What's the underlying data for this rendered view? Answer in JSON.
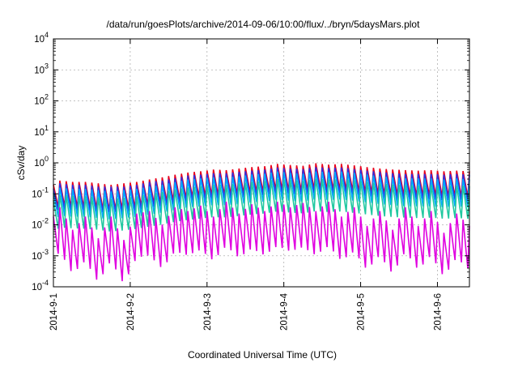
{
  "chart_data": {
    "type": "line",
    "title": "/data/run/goesPlots/archive/2014-09-06/10:00/flux/../bryn/5daysMars.plot",
    "xlabel": "Coordinated Universal Time (UTC)",
    "ylabel": "cSv/day",
    "log_y": true,
    "xlim": [
      "2014-09-01 00:00",
      "2014-09-06 10:00"
    ],
    "ylim": [
      0.0001,
      10000
    ],
    "grid": true,
    "x_ticks": [
      "2014-09-01",
      "2014-09-02",
      "2014-09-03",
      "2014-09-04",
      "2014-09-05",
      "2014-09-06"
    ],
    "x_tick_labels": [
      "2014-9-1",
      "2014-9-2",
      "2014-9-3",
      "2014-9-4",
      "2014-9-5",
      "2014-9-6"
    ],
    "y_ticks": [
      {
        "base": "10",
        "exp": "-4"
      },
      {
        "base": "10",
        "exp": "-3"
      },
      {
        "base": "10",
        "exp": "-2"
      },
      {
        "base": "10",
        "exp": "-1"
      },
      {
        "base": "10",
        "exp": "0"
      },
      {
        "base": "10",
        "exp": "1"
      },
      {
        "base": "10",
        "exp": "2"
      },
      {
        "base": "10",
        "exp": "3"
      },
      {
        "base": "10",
        "exp": "4"
      }
    ],
    "series": [
      {
        "color": "#e8001c",
        "x": [
          "2014-09-01 00:00",
          "2014-09-01 02:00",
          "2014-09-01 06:00",
          "2014-09-01 10:00",
          "2014-09-01 14:00",
          "2014-09-01 18:00",
          "2014-09-01 22:00",
          "2014-09-02 02:00",
          "2014-09-02 06:00",
          "2014-09-02 10:00",
          "2014-09-02 14:00",
          "2014-09-02 18:00",
          "2014-09-02 22:00",
          "2014-09-03 02:00",
          "2014-09-03 06:00",
          "2014-09-03 10:00",
          "2014-09-03 14:00",
          "2014-09-03 18:00",
          "2014-09-03 22:00",
          "2014-09-04 02:00",
          "2014-09-04 06:00",
          "2014-09-04 10:00",
          "2014-09-04 14:00",
          "2014-09-04 18:00",
          "2014-09-04 22:00",
          "2014-09-05 02:00",
          "2014-09-05 06:00",
          "2014-09-05 10:00",
          "2014-09-05 14:00",
          "2014-09-05 18:00",
          "2014-09-05 22:00",
          "2014-09-06 02:00",
          "2014-09-06 06:00",
          "2014-09-06 10:00"
        ],
        "y": [
          0.08,
          0.11,
          0.1,
          0.1,
          0.09,
          0.08,
          0.09,
          0.1,
          0.12,
          0.14,
          0.17,
          0.2,
          0.22,
          0.25,
          0.24,
          0.27,
          0.3,
          0.32,
          0.38,
          0.35,
          0.33,
          0.4,
          0.36,
          0.38,
          0.34,
          0.3,
          0.27,
          0.25,
          0.24,
          0.23,
          0.24,
          0.22,
          0.23,
          0.22
        ]
      },
      {
        "color": "#3030e0",
        "x": [
          "2014-09-01 00:00",
          "2014-09-01 02:00",
          "2014-09-01 06:00",
          "2014-09-01 10:00",
          "2014-09-01 14:00",
          "2014-09-01 18:00",
          "2014-09-01 22:00",
          "2014-09-02 02:00",
          "2014-09-02 06:00",
          "2014-09-02 10:00",
          "2014-09-02 14:00",
          "2014-09-02 18:00",
          "2014-09-02 22:00",
          "2014-09-03 02:00",
          "2014-09-03 06:00",
          "2014-09-03 10:00",
          "2014-09-03 14:00",
          "2014-09-03 18:00",
          "2014-09-03 22:00",
          "2014-09-04 02:00",
          "2014-09-04 06:00",
          "2014-09-04 10:00",
          "2014-09-04 14:00",
          "2014-09-04 18:00",
          "2014-09-04 22:00",
          "2014-09-05 02:00",
          "2014-09-05 06:00",
          "2014-09-05 10:00",
          "2014-09-05 14:00",
          "2014-09-05 18:00",
          "2014-09-05 22:00",
          "2014-09-06 02:00",
          "2014-09-06 06:00",
          "2014-09-06 10:00"
        ],
        "y": [
          0.06,
          0.09,
          0.08,
          0.08,
          0.07,
          0.07,
          0.07,
          0.08,
          0.1,
          0.11,
          0.13,
          0.16,
          0.17,
          0.19,
          0.19,
          0.21,
          0.23,
          0.25,
          0.29,
          0.27,
          0.26,
          0.3,
          0.28,
          0.29,
          0.26,
          0.23,
          0.21,
          0.19,
          0.18,
          0.18,
          0.18,
          0.17,
          0.18,
          0.17
        ]
      },
      {
        "color": "#00a8ff",
        "x": [
          "2014-09-01 00:00",
          "2014-09-01 02:00",
          "2014-09-01 06:00",
          "2014-09-01 10:00",
          "2014-09-01 14:00",
          "2014-09-01 18:00",
          "2014-09-01 22:00",
          "2014-09-02 02:00",
          "2014-09-02 06:00",
          "2014-09-02 10:00",
          "2014-09-02 14:00",
          "2014-09-02 18:00",
          "2014-09-02 22:00",
          "2014-09-03 02:00",
          "2014-09-03 06:00",
          "2014-09-03 10:00",
          "2014-09-03 14:00",
          "2014-09-03 18:00",
          "2014-09-03 22:00",
          "2014-09-04 02:00",
          "2014-09-04 06:00",
          "2014-09-04 10:00",
          "2014-09-04 14:00",
          "2014-09-04 18:00",
          "2014-09-04 22:00",
          "2014-09-05 02:00",
          "2014-09-05 06:00",
          "2014-09-05 10:00",
          "2014-09-05 14:00",
          "2014-09-05 18:00",
          "2014-09-05 22:00",
          "2014-09-06 02:00",
          "2014-09-06 06:00",
          "2014-09-06 10:00"
        ],
        "y": [
          0.04,
          0.06,
          0.055,
          0.055,
          0.05,
          0.045,
          0.05,
          0.055,
          0.065,
          0.075,
          0.09,
          0.11,
          0.12,
          0.13,
          0.13,
          0.14,
          0.16,
          0.17,
          0.2,
          0.18,
          0.17,
          0.2,
          0.19,
          0.2,
          0.18,
          0.16,
          0.14,
          0.13,
          0.12,
          0.12,
          0.12,
          0.11,
          0.12,
          0.11
        ]
      },
      {
        "color": "#20c8a0",
        "x": [
          "2014-09-01 00:00",
          "2014-09-01 02:00",
          "2014-09-01 06:00",
          "2014-09-01 10:00",
          "2014-09-01 14:00",
          "2014-09-01 18:00",
          "2014-09-01 22:00",
          "2014-09-02 02:00",
          "2014-09-02 06:00",
          "2014-09-02 10:00",
          "2014-09-02 14:00",
          "2014-09-02 18:00",
          "2014-09-02 22:00",
          "2014-09-03 02:00",
          "2014-09-03 06:00",
          "2014-09-03 10:00",
          "2014-09-03 14:00",
          "2014-09-03 18:00",
          "2014-09-03 22:00",
          "2014-09-04 02:00",
          "2014-09-04 06:00",
          "2014-09-04 10:00",
          "2014-09-04 14:00",
          "2014-09-04 18:00",
          "2014-09-04 22:00",
          "2014-09-05 02:00",
          "2014-09-05 06:00",
          "2014-09-05 10:00",
          "2014-09-05 14:00",
          "2014-09-05 18:00",
          "2014-09-05 22:00",
          "2014-09-06 02:00",
          "2014-09-06 06:00",
          "2014-09-06 10:00"
        ],
        "y": [
          0.02,
          0.03,
          0.028,
          0.027,
          0.025,
          0.022,
          0.024,
          0.027,
          0.032,
          0.037,
          0.045,
          0.052,
          0.058,
          0.064,
          0.063,
          0.07,
          0.078,
          0.084,
          0.098,
          0.09,
          0.085,
          0.1,
          0.094,
          0.098,
          0.088,
          0.078,
          0.07,
          0.065,
          0.062,
          0.06,
          0.062,
          0.057,
          0.06,
          0.057
        ]
      },
      {
        "color": "#e000e0",
        "x": [
          "2014-09-01 00:00",
          "2014-09-01 02:00",
          "2014-09-01 06:00",
          "2014-09-01 10:00",
          "2014-09-01 14:00",
          "2014-09-01 18:00",
          "2014-09-01 22:00",
          "2014-09-02 02:00",
          "2014-09-02 06:00",
          "2014-09-02 10:00",
          "2014-09-02 14:00",
          "2014-09-02 18:00",
          "2014-09-02 22:00",
          "2014-09-03 02:00",
          "2014-09-03 06:00",
          "2014-09-03 10:00",
          "2014-09-03 14:00",
          "2014-09-03 18:00",
          "2014-09-03 22:00",
          "2014-09-04 02:00",
          "2014-09-04 06:00",
          "2014-09-04 10:00",
          "2014-09-04 14:00",
          "2014-09-04 18:00",
          "2014-09-04 22:00",
          "2014-09-05 02:00",
          "2014-09-05 06:00",
          "2014-09-05 10:00",
          "2014-09-05 14:00",
          "2014-09-05 18:00",
          "2014-09-05 22:00",
          "2014-09-06 02:00",
          "2014-09-06 06:00",
          "2014-09-06 10:00"
        ],
        "y": [
          0.004,
          0.008,
          0.0015,
          0.004,
          0.0008,
          0.004,
          0.0007,
          0.005,
          0.006,
          0.0022,
          0.008,
          0.006,
          0.009,
          0.004,
          0.012,
          0.005,
          0.01,
          0.006,
          0.012,
          0.008,
          0.011,
          0.006,
          0.012,
          0.004,
          0.008,
          0.002,
          0.006,
          0.0015,
          0.008,
          0.002,
          0.006,
          0.0012,
          0.005,
          0.002
        ]
      }
    ]
  }
}
